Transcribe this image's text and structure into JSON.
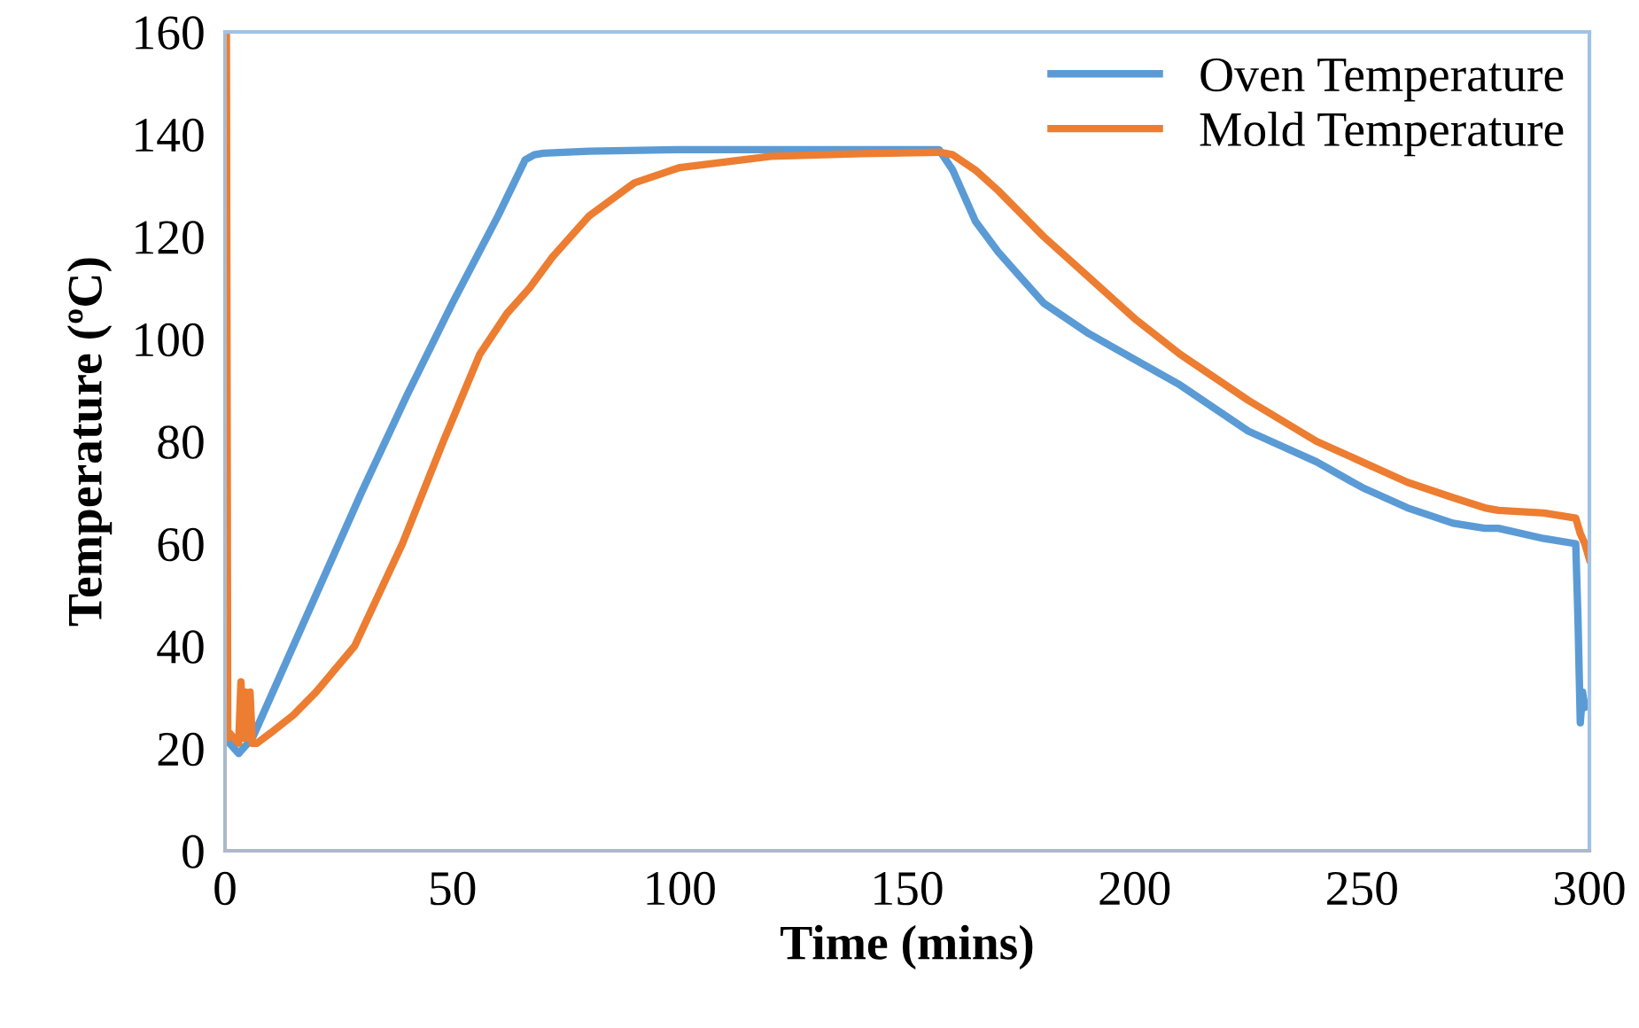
{
  "chart_data": {
    "type": "line",
    "xlabel": "Time (mins)",
    "ylabel": "Temperature (ºC)",
    "xlim": [
      0,
      300
    ],
    "ylim": [
      0,
      160
    ],
    "xticks": [
      0,
      50,
      100,
      150,
      200,
      250,
      300
    ],
    "yticks": [
      0,
      20,
      40,
      60,
      80,
      100,
      120,
      140,
      160
    ],
    "grid": false,
    "legend": "top right",
    "marker": "none",
    "line_style": "solid",
    "series": [
      {
        "name": "Oven Temperature",
        "color": "#5b9bd5",
        "x": [
          0.5,
          1,
          2,
          3,
          4,
          5,
          6,
          10,
          20,
          30,
          40,
          50,
          60,
          66,
          68,
          70,
          80,
          100,
          120,
          140,
          157,
          160,
          165,
          170,
          175,
          180,
          190,
          200,
          210,
          225,
          240,
          250,
          260,
          270,
          277,
          280,
          290,
          297,
          297.5,
          298,
          298.5,
          299,
          300
        ],
        "values": [
          22,
          21,
          20,
          19,
          20,
          21,
          22,
          30,
          50,
          70,
          89,
          107,
          124,
          135,
          136,
          136.3,
          136.7,
          137,
          137,
          137,
          137,
          133,
          123,
          117,
          112,
          107,
          101,
          96,
          91,
          82,
          76,
          71,
          67,
          64,
          63,
          63,
          61,
          60,
          45,
          25,
          31,
          28,
          29
        ]
      },
      {
        "name": "Mold Temperature",
        "color": "#ed7d31",
        "x": [
          0.3,
          0.6,
          1,
          2,
          3,
          3.5,
          4,
          4.5,
          5,
          5.5,
          6,
          7,
          10,
          15,
          20,
          28.5,
          39,
          48,
          56,
          62,
          67,
          72,
          80,
          90,
          100,
          120,
          140,
          157,
          160,
          165,
          170,
          180,
          190,
          200,
          210,
          225,
          240,
          250,
          260,
          270,
          277,
          280,
          290,
          297,
          298,
          299,
          300
        ],
        "values": [
          160,
          22,
          23,
          22,
          21,
          33,
          22,
          31,
          22,
          31,
          21,
          21,
          23,
          26.5,
          31,
          40,
          60,
          80,
          97,
          105,
          110,
          116,
          124,
          130.5,
          133.5,
          135.7,
          136.2,
          136.5,
          136,
          133,
          129,
          120,
          112,
          104,
          97,
          88,
          80,
          76,
          72,
          69,
          67,
          66.5,
          66,
          65,
          62,
          60,
          57
        ]
      }
    ]
  }
}
